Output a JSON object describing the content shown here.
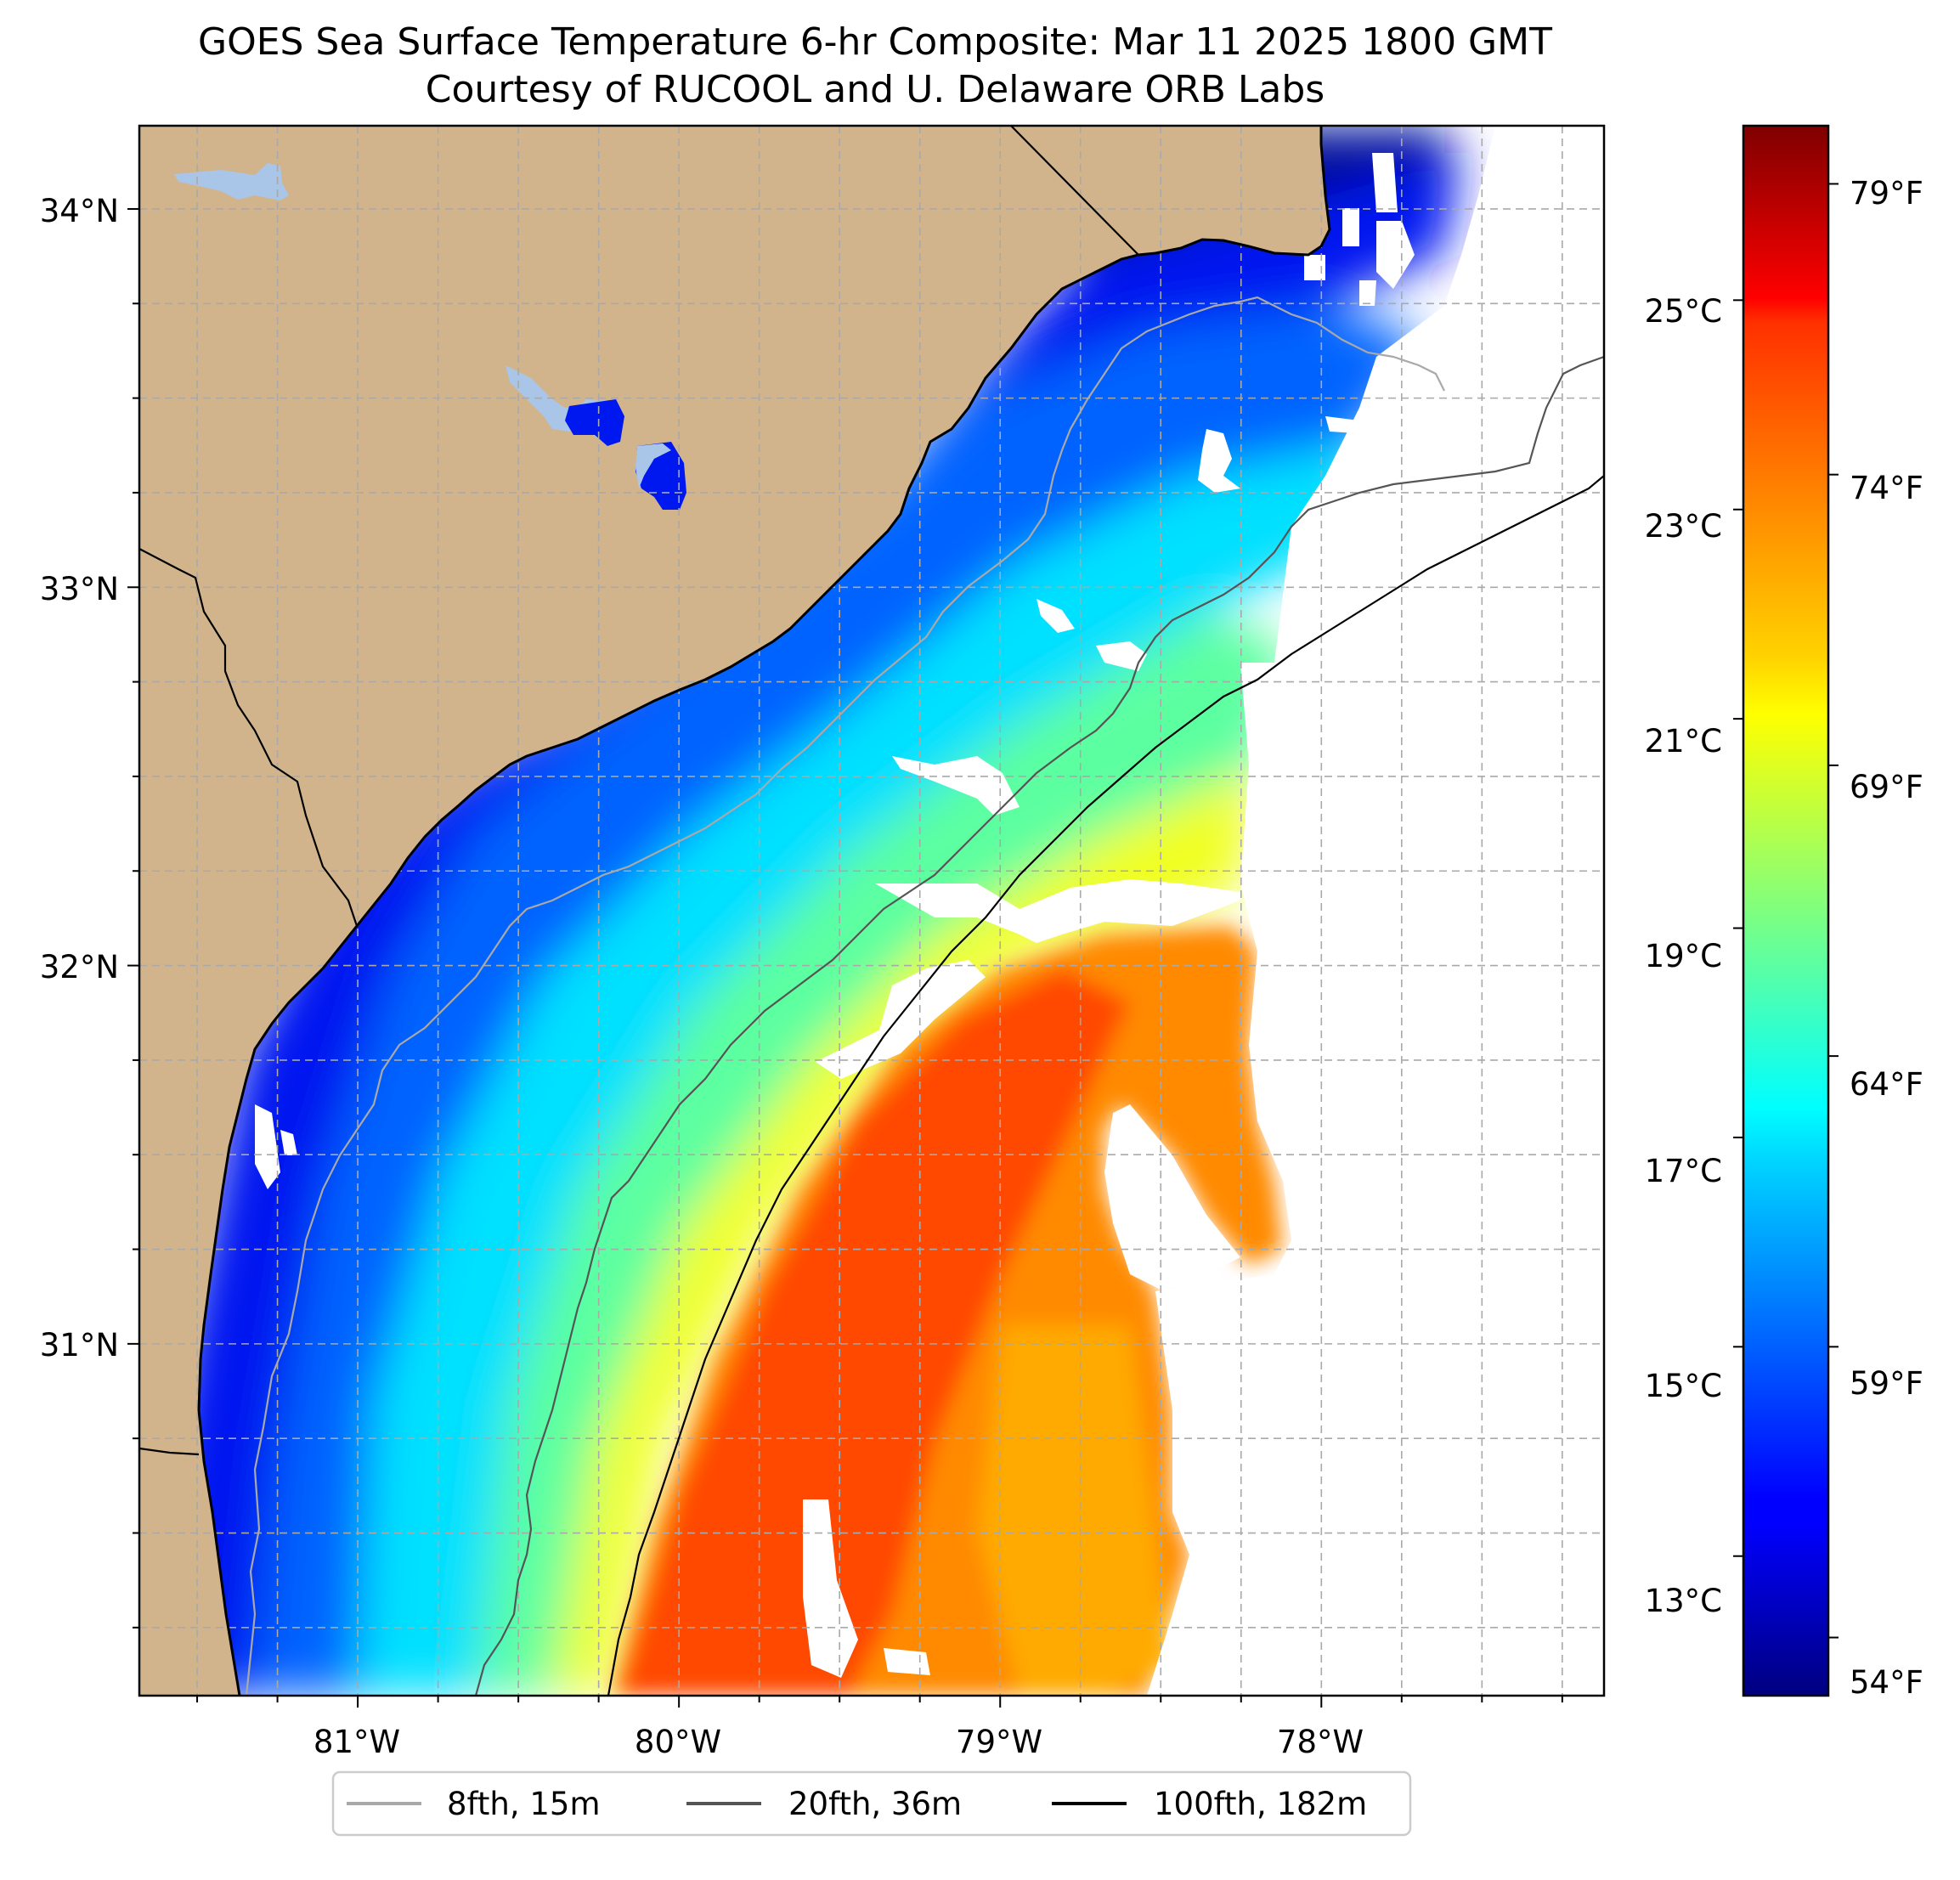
{
  "title": "GOES Sea Surface Temperature 6-hr Composite: Mar 11 2025 1800 GMT",
  "subtitle": "Courtesy of RUCOOL and U. Delaware ORB Labs",
  "map": {
    "lon_range": [
      -81.68,
      -77.12
    ],
    "lat_range": [
      30.07,
      34.22
    ],
    "lon_labels": [
      {
        "lon": -81,
        "label": "81°W"
      },
      {
        "lon": -80,
        "label": "80°W"
      },
      {
        "lon": -79,
        "label": "79°W"
      },
      {
        "lon": -78,
        "label": "78°W"
      }
    ],
    "lat_labels": [
      {
        "lat": 34,
        "label": "34°N"
      },
      {
        "lat": 33,
        "label": "33°N"
      },
      {
        "lat": 32,
        "label": "32°N"
      },
      {
        "lat": 31,
        "label": "31°N"
      }
    ],
    "grid": "dashed, every 0.25°",
    "colors": {
      "land": "#d2b48c",
      "lake": "#a9c5e8",
      "no_data": "#ffffff",
      "coast": "#000000"
    }
  },
  "colorbar": {
    "colormap": "jet",
    "celsius_ticks": [
      "25°C",
      "23°C",
      "21°C",
      "19°C",
      "17°C",
      "15°C",
      "13°C"
    ],
    "fahrenheit_ticks": [
      "79°F",
      "74°F",
      "69°F",
      "64°F",
      "59°F",
      "54°F"
    ],
    "range_f": [
      53,
      80
    ]
  },
  "legend": {
    "items": [
      {
        "label": "8fth, 15m",
        "color": "#a9a9a9"
      },
      {
        "label": "20fth, 36m",
        "color": "#555555"
      },
      {
        "label": "100fth, 182m",
        "color": "#000000"
      }
    ]
  }
}
